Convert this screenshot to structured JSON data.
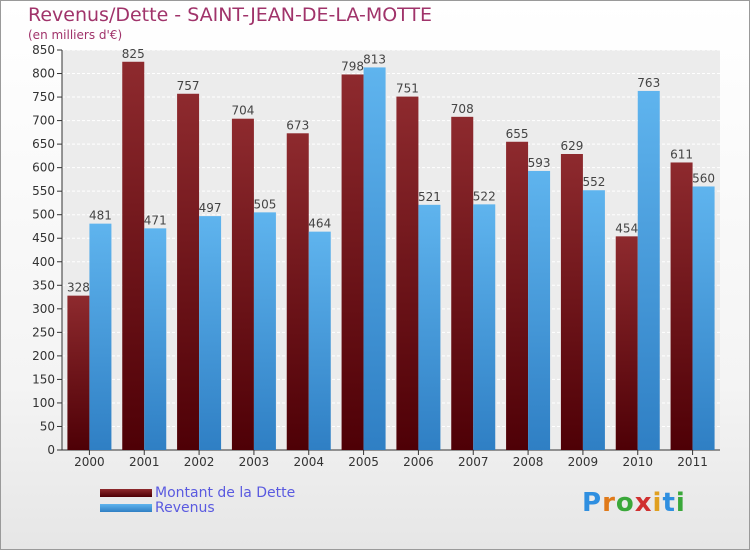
{
  "chart_data": {
    "type": "bar",
    "title": "Revenus/Dette - SAINT-JEAN-DE-LA-MOTTE",
    "subtitle": "(en milliers d'€)",
    "categories": [
      "2000",
      "2001",
      "2002",
      "2003",
      "2004",
      "2005",
      "2006",
      "2007",
      "2008",
      "2009",
      "2010",
      "2011"
    ],
    "series": [
      {
        "name": "Montant de la Dette",
        "color": "#7a1418",
        "values": [
          328,
          825,
          757,
          704,
          673,
          798,
          751,
          708,
          655,
          629,
          454,
          611
        ]
      },
      {
        "name": "Revenus",
        "color": "#3d9de0",
        "values": [
          481,
          471,
          497,
          505,
          464,
          813,
          521,
          522,
          593,
          552,
          763,
          560
        ]
      }
    ],
    "ylim": [
      0,
      850
    ],
    "yticks": [
      0,
      50,
      100,
      150,
      200,
      250,
      300,
      350,
      400,
      450,
      500,
      550,
      600,
      650,
      700,
      750,
      800,
      850
    ],
    "grid": true,
    "legend_position": "bottom-left"
  },
  "logo": {
    "text": "Proxiti",
    "icon": "proxiti-logo"
  }
}
